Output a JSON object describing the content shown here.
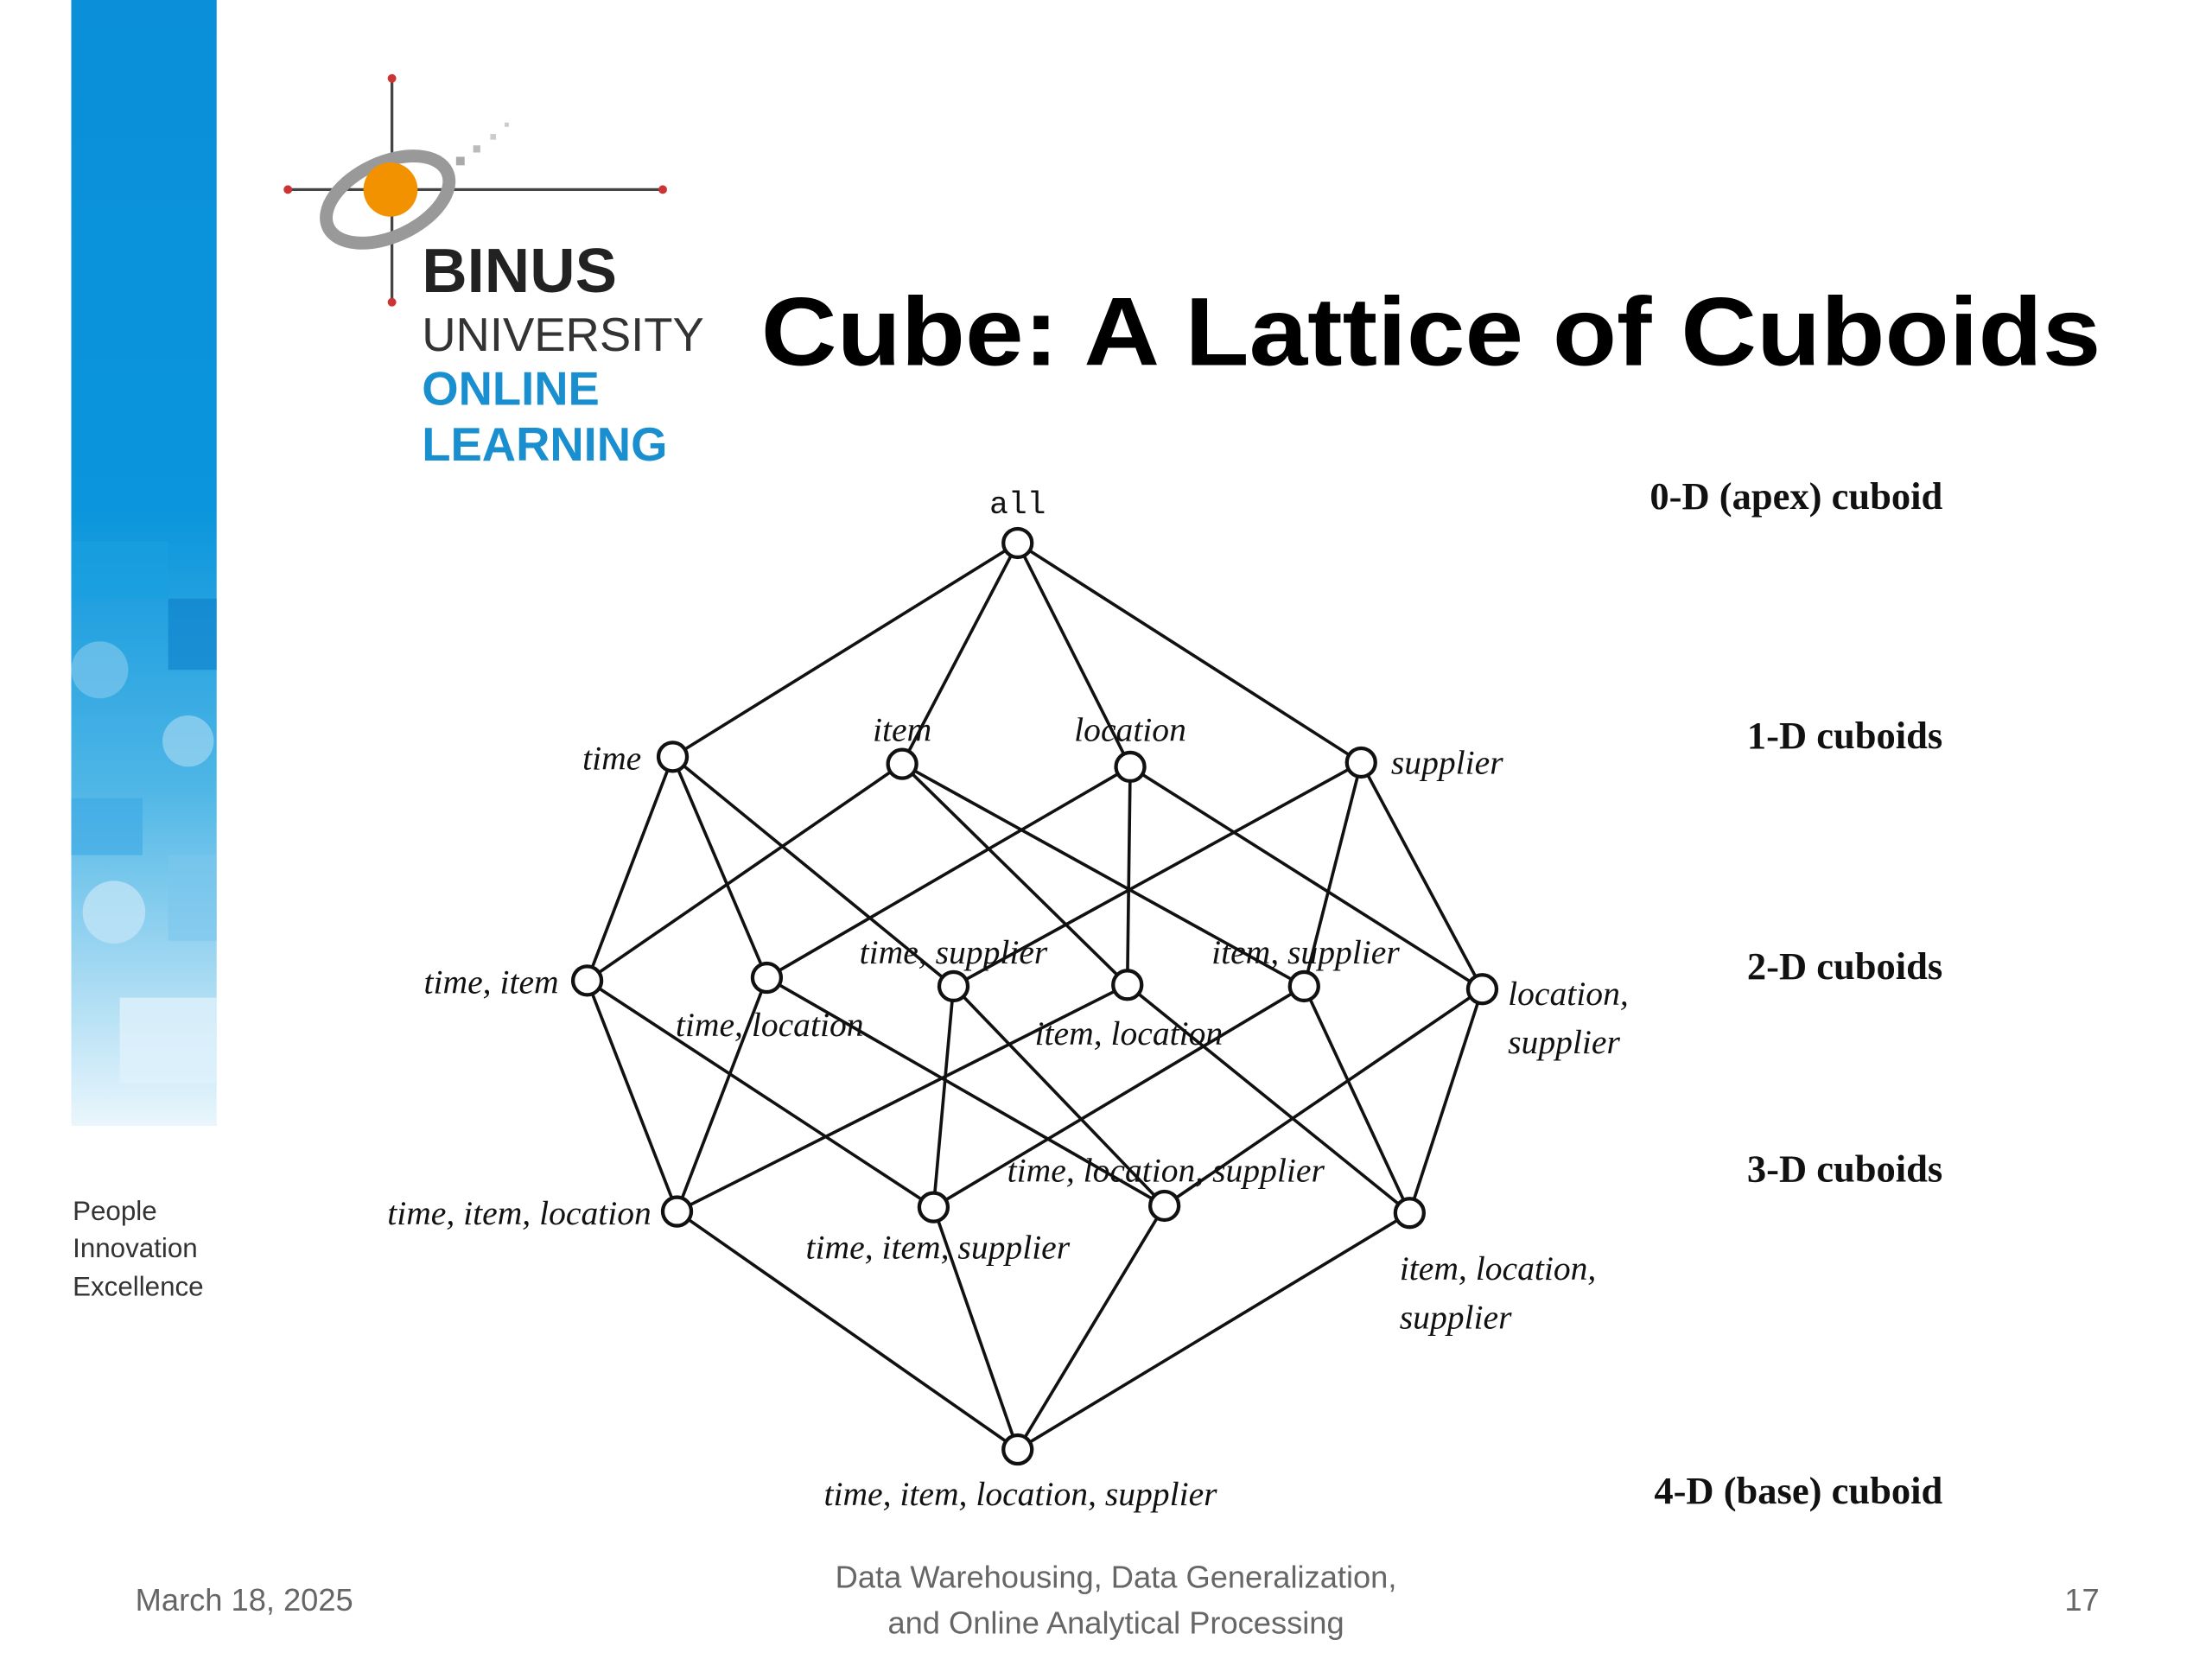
{
  "header": {
    "logo": [
      "BINUS",
      "UNIVERSITY",
      "ONLINE",
      "LEARNING"
    ],
    "title": "Cube: A Lattice of Cuboids"
  },
  "tagline": [
    "People",
    "Innovation",
    "Excellence"
  ],
  "nodes": [
    {
      "lines": [
        "all"
      ]
    },
    {
      "lines": [
        "time"
      ]
    },
    {
      "lines": [
        "item"
      ]
    },
    {
      "lines": [
        "location"
      ]
    },
    {
      "lines": [
        "supplier"
      ]
    },
    {
      "lines": [
        "time, item"
      ]
    },
    {
      "lines": [
        "time, location"
      ]
    },
    {
      "lines": [
        "time, supplier"
      ]
    },
    {
      "lines": [
        "item, location"
      ]
    },
    {
      "lines": [
        "item, supplier"
      ]
    },
    {
      "lines": [
        "location,",
        "supplier"
      ]
    },
    {
      "lines": [
        "time, item, location"
      ]
    },
    {
      "lines": [
        "time, item, supplier"
      ]
    },
    {
      "lines": [
        "time, location, supplier"
      ]
    },
    {
      "lines": [
        "item, location,",
        "supplier"
      ]
    },
    {
      "lines": [
        "time, item, location, supplier"
      ]
    }
  ],
  "levels": [
    "0-D (apex) cuboid",
    "1-D cuboids",
    "2-D cuboids",
    "3-D cuboids",
    "4-D (base) cuboid"
  ],
  "footer": {
    "date": "March 18, 2025",
    "subject": [
      "Data Warehousing, Data Generalization,",
      "and Online Analytical Processing"
    ],
    "page": "17"
  }
}
